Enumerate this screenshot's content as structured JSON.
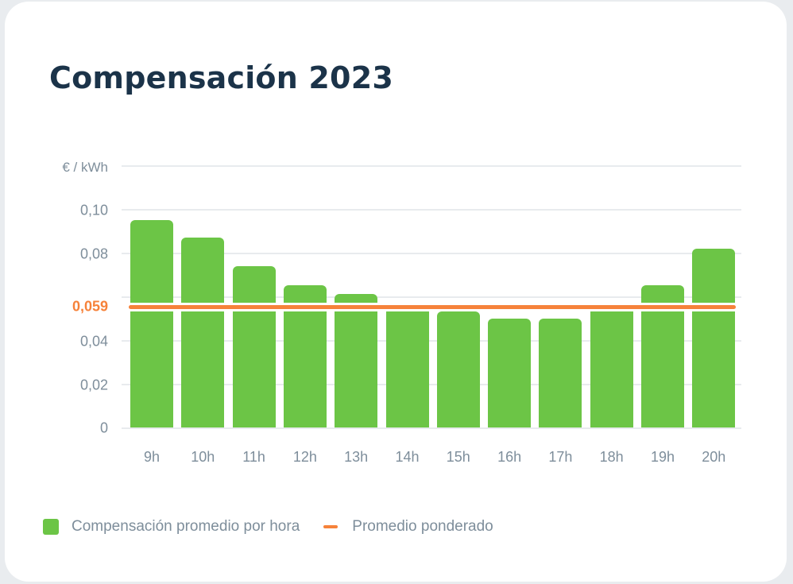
{
  "title": "Compensación 2023",
  "colors": {
    "bar": "#6cc546",
    "average": "#f6823a",
    "title": "#1b3349",
    "axis_text": "#7e8e9b",
    "grid": "#e8ebee"
  },
  "axis": {
    "unit": "€ / kWh",
    "yticks": [
      "0,10",
      "0,08",
      "0,04",
      "0,02",
      "0"
    ],
    "average_label": "0,059"
  },
  "legend": {
    "bars": "Compensación promedio por hora",
    "line": "Promedio ponderado"
  },
  "chart_data": {
    "type": "bar",
    "title": "Compensación 2023",
    "xlabel": "",
    "ylabel": "€ / kWh",
    "ylim": [
      0,
      0.1
    ],
    "yticks": [
      0,
      0.02,
      0.04,
      0.06,
      0.08,
      0.1
    ],
    "grid": true,
    "legend_position": "bottom-left",
    "categories": [
      "9h",
      "10h",
      "11h",
      "12h",
      "13h",
      "14h",
      "15h",
      "16h",
      "17h",
      "18h",
      "19h",
      "20h"
    ],
    "series": [
      {
        "name": "Compensación promedio por hora",
        "type": "bar",
        "values": [
          0.095,
          0.087,
          0.074,
          0.065,
          0.061,
          0.055,
          0.053,
          0.05,
          0.05,
          0.055,
          0.065,
          0.082
        ]
      },
      {
        "name": "Promedio ponderado",
        "type": "hline",
        "value": 0.059,
        "label": "0,059"
      }
    ]
  }
}
